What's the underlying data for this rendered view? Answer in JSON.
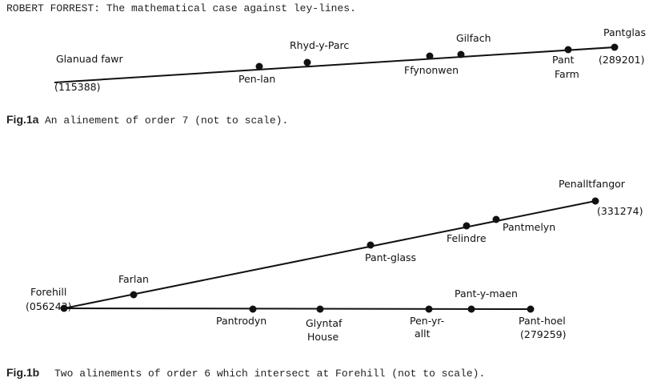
{
  "header": {
    "title": "ROBERT FORREST: The mathematical case against ley-lines."
  },
  "figures": [
    {
      "label": "Fig.1a",
      "caption": "An alinement of order 7 (not to scale).",
      "nodes": [
        {
          "lines": [
            "Glanuad fawr",
            "(115388)"
          ]
        },
        {
          "lines": [
            "Pen-lan"
          ]
        },
        {
          "lines": [
            "Rhyd-y-Parc"
          ]
        },
        {
          "lines": [
            "Ffynonwen"
          ]
        },
        {
          "lines": [
            "Gilfach"
          ]
        },
        {
          "lines": [
            "Pant",
            "Farm"
          ]
        },
        {
          "lines": [
            "Pantglas",
            "(289201)"
          ]
        }
      ]
    },
    {
      "label": "Fig.1b",
      "caption": "Two alinements of order 6 which intersect at Forehill (not to scale).",
      "nodes": [
        {
          "lines": [
            "Forehill",
            "(056243)"
          ]
        },
        {
          "lines": [
            "Farlan"
          ]
        },
        {
          "lines": [
            "Pant-glass"
          ]
        },
        {
          "lines": [
            "Felindre"
          ]
        },
        {
          "lines": [
            "Pantmelyn"
          ]
        },
        {
          "lines": [
            "Penalltfangor",
            "(331274)"
          ]
        },
        {
          "lines": [
            "Pantrodyn"
          ]
        },
        {
          "lines": [
            "Glyntaf",
            "House"
          ]
        },
        {
          "lines": [
            "Pen-yr-",
            "allt"
          ]
        },
        {
          "lines": [
            "Pant-y-maen"
          ]
        },
        {
          "lines": [
            "Pant-hoel",
            "(279259)"
          ]
        }
      ]
    }
  ]
}
